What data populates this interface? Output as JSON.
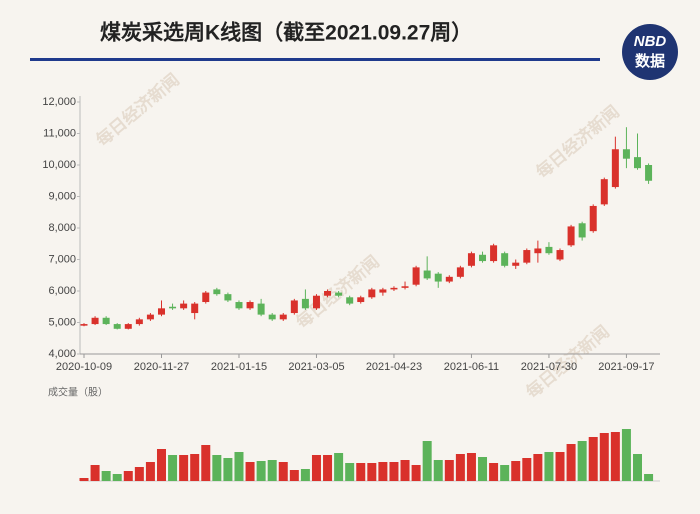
{
  "chart_data": {
    "type": "candlestick",
    "title": "煤炭采选周K线图（截至2021.09.27周）",
    "logo_top": "NBD",
    "logo_bottom": "数据",
    "watermark": "每日经济新闻",
    "volume_label": "成交量（股）",
    "categories": [
      "2020-10-09",
      null,
      null,
      null,
      null,
      null,
      null,
      "2020-11-27",
      null,
      null,
      null,
      null,
      null,
      null,
      "2021-01-15",
      null,
      null,
      null,
      null,
      null,
      null,
      "2021-03-05",
      null,
      null,
      null,
      null,
      null,
      null,
      "2021-04-23",
      null,
      null,
      null,
      null,
      null,
      null,
      "2021-06-11",
      null,
      null,
      null,
      null,
      null,
      null,
      "2021-07-30",
      null,
      null,
      null,
      null,
      null,
      null,
      "2021-09-17",
      null,
      null
    ],
    "open": [
      4900,
      4950,
      5150,
      4950,
      4800,
      4950,
      5100,
      5250,
      5500,
      5450,
      5300,
      5650,
      6050,
      5900,
      5650,
      5450,
      5600,
      5250,
      5100,
      5300,
      5750,
      5450,
      5850,
      5950,
      5800,
      5650,
      5800,
      5950,
      6050,
      6100,
      6200,
      6650,
      6550,
      6300,
      6450,
      6800,
      7150,
      6950,
      7200,
      6800,
      6900,
      7200,
      7400,
      7000,
      7450,
      8150,
      7900,
      8750,
      9300,
      10500,
      10250,
      10000
    ],
    "high": [
      4980,
      5200,
      5200,
      4980,
      4980,
      5150,
      5300,
      5700,
      5600,
      5700,
      5650,
      6000,
      6100,
      5950,
      5700,
      5700,
      5750,
      5300,
      5300,
      5750,
      6050,
      5900,
      6050,
      6000,
      5850,
      5850,
      6100,
      6100,
      6150,
      6300,
      6800,
      7100,
      6600,
      6500,
      6800,
      7250,
      7250,
      7500,
      7250,
      7000,
      7350,
      7600,
      7550,
      7350,
      8100,
      8200,
      8750,
      9600,
      10900,
      11200,
      11000,
      10050
    ],
    "low": [
      4880,
      4920,
      4920,
      4780,
      4780,
      4900,
      5050,
      5200,
      5400,
      5400,
      5100,
      5600,
      5850,
      5650,
      5400,
      5400,
      5200,
      5050,
      5050,
      5250,
      5400,
      5400,
      5800,
      5800,
      5550,
      5600,
      5750,
      5850,
      6000,
      6050,
      6150,
      6350,
      6100,
      6250,
      6400,
      6750,
      6900,
      6900,
      6750,
      6700,
      6850,
      6900,
      7150,
      6950,
      7400,
      7600,
      7850,
      8700,
      9250,
      9900,
      9850,
      9400
    ],
    "close": [
      4950,
      5150,
      4950,
      4800,
      4950,
      5100,
      5250,
      5450,
      5450,
      5600,
      5600,
      5950,
      5900,
      5700,
      5450,
      5650,
      5250,
      5100,
      5250,
      5700,
      5450,
      5850,
      6000,
      5850,
      5600,
      5800,
      6050,
      6050,
      6100,
      6150,
      6750,
      6400,
      6300,
      6450,
      6750,
      7200,
      6950,
      7450,
      6800,
      6900,
      7300,
      7350,
      7200,
      7300,
      8050,
      7700,
      8700,
      9550,
      10500,
      10200,
      9900,
      9500
    ],
    "volume": [
      3,
      16,
      10,
      7,
      10,
      14,
      19,
      32,
      26,
      26,
      27,
      36,
      26,
      23,
      29,
      19,
      20,
      21,
      19,
      11,
      12,
      26,
      26,
      28,
      18,
      18,
      18,
      19,
      19,
      21,
      16,
      40,
      21,
      21,
      27,
      28,
      24,
      18,
      16,
      20,
      23,
      27,
      29,
      29,
      37,
      40,
      44,
      48,
      49,
      52,
      27,
      7
    ],
    "volume_ylim": [
      0,
      55
    ],
    "up_color": "#d9312b",
    "down_color": "#5cb35a",
    "ylim": [
      4000,
      12000
    ],
    "yticks": [
      {
        "value": 4000,
        "label": "4,000"
      },
      {
        "value": 5000,
        "label": "5,000"
      },
      {
        "value": 6000,
        "label": "6,000"
      },
      {
        "value": 7000,
        "label": "7,000"
      },
      {
        "value": 8000,
        "label": "8,000"
      },
      {
        "value": 9000,
        "label": "9,000"
      },
      {
        "value": 10000,
        "label": "10,000"
      },
      {
        "value": 11000,
        "label": "11,000"
      },
      {
        "value": 12000,
        "label": "12,000"
      }
    ],
    "grid": false
  }
}
